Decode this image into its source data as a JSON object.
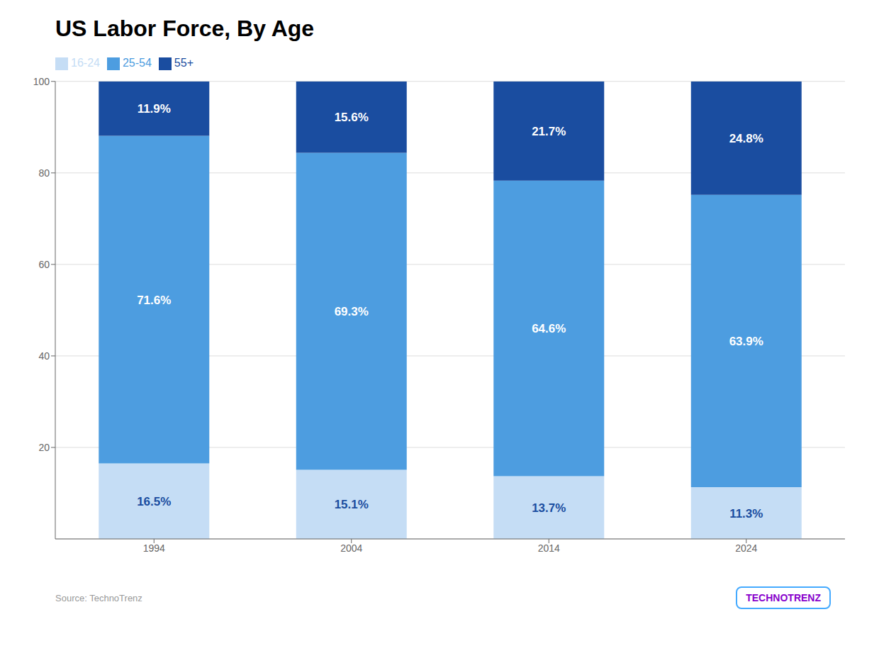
{
  "chart_data": {
    "type": "bar",
    "title": "US Labor Force, By Age",
    "categories": [
      "1994",
      "2004",
      "2014",
      "2024"
    ],
    "series": [
      {
        "name": "16-24",
        "color": "#c5ddf5",
        "values": [
          16.5,
          15.1,
          13.7,
          11.3
        ],
        "value_labels": [
          "16.5%",
          "15.1%",
          "13.7%",
          "11.3%"
        ]
      },
      {
        "name": "25-54",
        "color": "#4d9de0",
        "values": [
          71.6,
          69.3,
          64.6,
          63.9
        ],
        "value_labels": [
          "71.6%",
          "69.3%",
          "64.6%",
          "63.9%"
        ]
      },
      {
        "name": "55+",
        "color": "#1a4da0",
        "values": [
          11.9,
          15.6,
          21.7,
          24.8
        ],
        "value_labels": [
          "11.9%",
          "15.6%",
          "21.7%",
          "24.8%"
        ]
      }
    ],
    "stacked": true,
    "data_labels": true,
    "ylim": [
      0,
      100
    ],
    "yticks": [
      20,
      40,
      60,
      80,
      100
    ],
    "grid": true,
    "legend": "top-left",
    "annotations": [
      "Source: TechnoTrenz",
      "TECHNOTRENZ"
    ]
  }
}
